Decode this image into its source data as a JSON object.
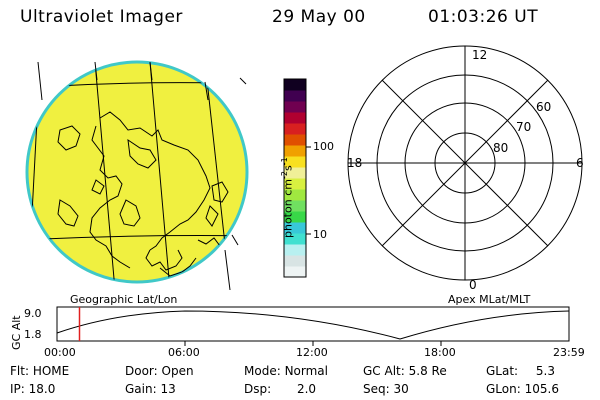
{
  "header": {
    "instrument": "Ultraviolet Imager",
    "date": "29 May 00",
    "time": "01:03:26 UT"
  },
  "geo_panel": {
    "label": "Geographic Lat/Lon"
  },
  "colorbar": {
    "unit": "photon cm",
    "exp1": "-2",
    "mid": "s",
    "exp2": "-1",
    "ticks": [
      "100",
      "10"
    ],
    "colors": [
      "#eef4f4",
      "#d8e4e4",
      "#b8f0f0",
      "#40e0d0",
      "#38c8d8",
      "#38d848",
      "#70e060",
      "#a0e840",
      "#d8f040",
      "#f0f098",
      "#f8e020",
      "#f0a000",
      "#e05000",
      "#d82020",
      "#b00030",
      "#700050",
      "#400050",
      "#100020"
    ]
  },
  "polar": {
    "label": "Apex MLat/MLT",
    "mlt_labels": {
      "top": "12",
      "left": "18",
      "right": "6",
      "bottom": "0"
    },
    "lat_labels": [
      "60",
      "70",
      "80"
    ]
  },
  "timeline": {
    "ylabel": "GC Alt",
    "yticks": [
      "9.0",
      "1.8"
    ],
    "xticks": [
      "00:00",
      "06:00",
      "12:00",
      "18:00",
      "23:59"
    ],
    "current_fraction": 0.044
  },
  "info": {
    "flt_label": "Flt:",
    "flt_value": "HOME",
    "ip_label": "IP:",
    "ip_value": "18.0",
    "door_label": "Door:",
    "door_value": "Open",
    "gain_label": "Gain:",
    "gain_value": "13",
    "mode_label": "Mode:",
    "mode_value": "Normal",
    "dsp_label": "Dsp:",
    "dsp_value": "2.0",
    "gcalt_label": "GC Alt:",
    "gcalt_value": "5.8 Re",
    "seq_label": "Seq:",
    "seq_value": "30",
    "glat_label": "GLat:",
    "glat_value": "5.3",
    "glon_label": "GLon:",
    "glon_value": "105.6"
  },
  "accent": {
    "disk": "#f0f040",
    "disk_edge": "#40c8c8",
    "marker": "#e02020"
  }
}
